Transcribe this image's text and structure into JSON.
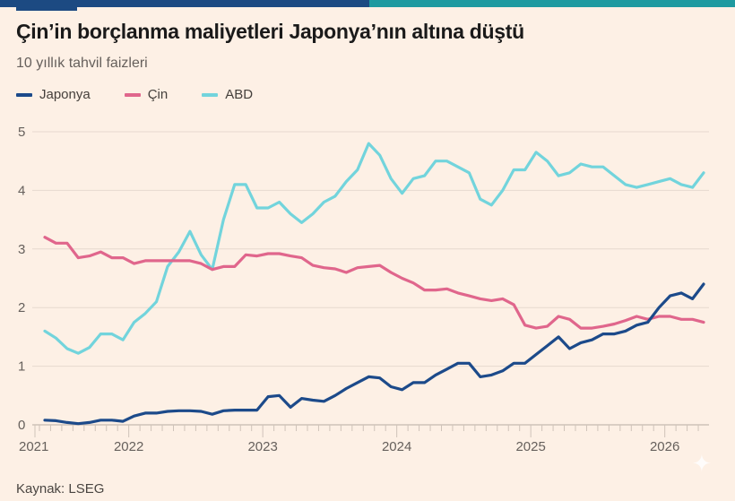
{
  "title": "Çin’in borçlanma maliyetleri Japonya’nın altına düştü",
  "subtitle": "10 yıllık tahvil faizleri",
  "source": "Kaynak: LSEG",
  "legend": [
    {
      "label": "Japonya",
      "color": "#1c4a8a"
    },
    {
      "label": "Çin",
      "color": "#e0668c"
    },
    {
      "label": "ABD",
      "color": "#72d4dc"
    }
  ],
  "chart_data": {
    "type": "line",
    "title": "Çin’in borçlanma maliyetleri Japonya’nın altına düştü",
    "subtitle": "10 yıllık tahvil faizleri",
    "xlabel": "",
    "ylabel": "",
    "xlim": [
      "2021-04",
      "2026-05"
    ],
    "ylim": [
      0,
      5
    ],
    "yticks": [
      "0",
      "1",
      "2",
      "3",
      "4",
      "5"
    ],
    "xticks": [
      "2021",
      "2022",
      "2023",
      "2024",
      "2025",
      "2026"
    ],
    "grid": true,
    "legend_position": "top-left",
    "x": [
      "2021-05",
      "2021-06",
      "2021-07",
      "2021-08",
      "2021-09",
      "2021-10",
      "2021-11",
      "2021-12",
      "2022-01",
      "2022-02",
      "2022-03",
      "2022-04",
      "2022-05",
      "2022-06",
      "2022-07",
      "2022-08",
      "2022-09",
      "2022-10",
      "2022-11",
      "2022-12",
      "2023-01",
      "2023-02",
      "2023-03",
      "2023-04",
      "2023-05",
      "2023-06",
      "2023-07",
      "2023-08",
      "2023-09",
      "2023-10",
      "2023-11",
      "2023-12",
      "2024-01",
      "2024-02",
      "2024-03",
      "2024-04",
      "2024-05",
      "2024-06",
      "2024-07",
      "2024-08",
      "2024-09",
      "2024-10",
      "2024-11",
      "2024-12",
      "2025-01",
      "2025-02",
      "2025-03",
      "2025-04",
      "2025-05",
      "2025-06",
      "2025-07",
      "2025-08",
      "2025-09",
      "2025-10",
      "2025-11",
      "2025-12",
      "2026-01",
      "2026-02",
      "2026-03",
      "2026-04"
    ],
    "series": [
      {
        "name": "Japonya",
        "color": "#1c4a8a",
        "values": [
          0.08,
          0.07,
          0.04,
          0.02,
          0.04,
          0.08,
          0.08,
          0.06,
          0.15,
          0.2,
          0.2,
          0.23,
          0.24,
          0.24,
          0.23,
          0.18,
          0.24,
          0.25,
          0.25,
          0.25,
          0.48,
          0.5,
          0.3,
          0.45,
          0.42,
          0.4,
          0.5,
          0.62,
          0.72,
          0.82,
          0.8,
          0.65,
          0.6,
          0.72,
          0.72,
          0.85,
          0.95,
          1.05,
          1.05,
          0.82,
          0.85,
          0.92,
          1.05,
          1.05,
          1.2,
          1.35,
          1.5,
          1.3,
          1.4,
          1.45,
          1.55,
          1.55,
          1.6,
          1.7,
          1.75,
          2.0,
          2.2,
          2.25,
          2.15,
          2.4
        ]
      },
      {
        "name": "Çin",
        "color": "#e0668c",
        "values": [
          3.2,
          3.1,
          3.1,
          2.85,
          2.88,
          2.95,
          2.85,
          2.85,
          2.75,
          2.8,
          2.8,
          2.8,
          2.8,
          2.8,
          2.75,
          2.65,
          2.7,
          2.7,
          2.9,
          2.88,
          2.92,
          2.92,
          2.88,
          2.85,
          2.72,
          2.68,
          2.66,
          2.6,
          2.68,
          2.7,
          2.72,
          2.6,
          2.5,
          2.42,
          2.3,
          2.3,
          2.32,
          2.25,
          2.2,
          2.15,
          2.12,
          2.15,
          2.05,
          1.7,
          1.65,
          1.68,
          1.85,
          1.8,
          1.65,
          1.65,
          1.68,
          1.72,
          1.78,
          1.85,
          1.8,
          1.85,
          1.85,
          1.8,
          1.8,
          1.75
        ]
      },
      {
        "name": "ABD",
        "color": "#72d4dc",
        "values": [
          1.6,
          1.48,
          1.3,
          1.22,
          1.32,
          1.55,
          1.55,
          1.45,
          1.75,
          1.9,
          2.1,
          2.7,
          2.95,
          3.3,
          2.9,
          2.65,
          3.5,
          4.1,
          4.1,
          3.7,
          3.7,
          3.8,
          3.6,
          3.45,
          3.6,
          3.8,
          3.9,
          4.15,
          4.35,
          4.8,
          4.6,
          4.2,
          3.95,
          4.2,
          4.25,
          4.5,
          4.5,
          4.4,
          4.3,
          3.85,
          3.75,
          4.0,
          4.35,
          4.35,
          4.65,
          4.5,
          4.25,
          4.3,
          4.45,
          4.4,
          4.4,
          4.25,
          4.1,
          4.05,
          4.1,
          4.15,
          4.2,
          4.1,
          4.05,
          4.3
        ]
      }
    ]
  }
}
